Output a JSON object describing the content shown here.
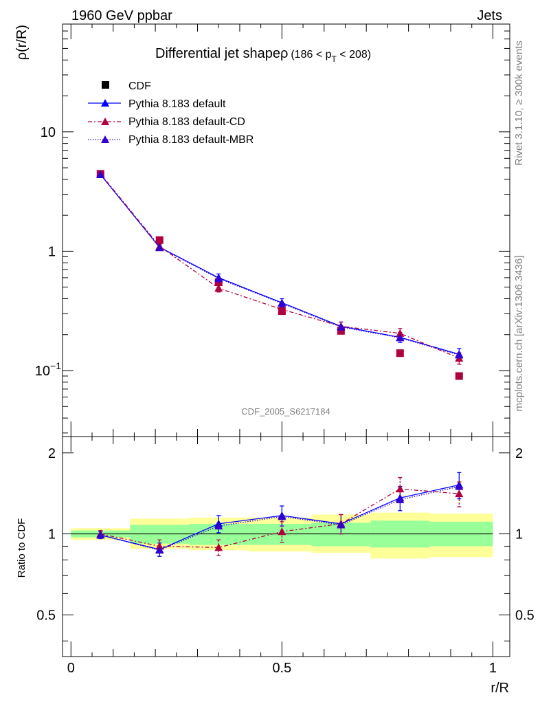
{
  "header": {
    "left": "1960 GeV ppbar",
    "right": "Jets"
  },
  "side_labels": {
    "rivet": "Rivet 3.1.10, ≥ 300k events",
    "mcplots": "mcplots.cern.ch [arXiv:1306.3436]"
  },
  "watermark": "CDF_2005_S6217184",
  "colors": {
    "cdf": "#000000",
    "default": "#0000ff",
    "cd": "#b00040",
    "mbr": "#3300cc",
    "band_inner": "#99ff99",
    "band_outer": "#ffff99"
  },
  "chart_data": [
    {
      "type": "scatter",
      "title": "Differential jet shapeρ",
      "title_suffix": "(186 < p",
      "title_sub": "T",
      "title_end": " < 208)",
      "xlabel": "r/R",
      "ylabel": "ρ(r/R)",
      "yscale": "log",
      "xlim": [
        -0.02,
        1.04
      ],
      "ylim": [
        0.028,
        80
      ],
      "yticks": [
        {
          "value": 0.1,
          "label": "10",
          "exp": "−1"
        },
        {
          "value": 1,
          "label": "1"
        },
        {
          "value": 10,
          "label": "10"
        }
      ],
      "legend": [
        "CDF",
        "Pythia 8.183 default",
        "Pythia 8.183 default-CD",
        "Pythia 8.183 default-MBR"
      ],
      "series": [
        {
          "name": "CDF",
          "style": "square",
          "x": [
            0.07,
            0.21,
            0.35,
            0.5,
            0.64,
            0.78,
            0.92
          ],
          "y": [
            4.45,
            1.24,
            0.55,
            0.315,
            0.215,
            0.14,
            0.09
          ]
        },
        {
          "name": "Pythia 8.183 default",
          "style": "solid",
          "x": [
            0.07,
            0.21,
            0.35,
            0.5,
            0.64,
            0.78,
            0.92
          ],
          "y": [
            4.38,
            1.08,
            0.6,
            0.37,
            0.235,
            0.19,
            0.137
          ],
          "err": [
            0.12,
            0.05,
            0.045,
            0.03,
            0.02,
            0.018,
            0.016
          ]
        },
        {
          "name": "Pythia 8.183 default-CD",
          "style": "dashdot",
          "x": [
            0.07,
            0.21,
            0.35,
            0.5,
            0.64,
            0.78,
            0.92
          ],
          "y": [
            4.45,
            1.1,
            0.49,
            0.325,
            0.235,
            0.205,
            0.127
          ],
          "err": [
            0.12,
            0.05,
            0.035,
            0.03,
            0.02,
            0.02,
            0.014
          ]
        },
        {
          "name": "Pythia 8.183 default-MBR",
          "style": "dotted",
          "x": [
            0.07,
            0.21,
            0.35,
            0.5,
            0.64,
            0.78,
            0.92
          ],
          "y": [
            4.4,
            1.07,
            0.59,
            0.365,
            0.232,
            0.188,
            0.135
          ]
        }
      ]
    },
    {
      "type": "scatter",
      "ylabel": "Ratio to CDF",
      "xlabel": "r/R",
      "xlim": [
        -0.02,
        1.04
      ],
      "ylim": [
        0.35,
        2.3
      ],
      "yticks": [
        {
          "value": 0.5,
          "label": "0.5"
        },
        {
          "value": 1,
          "label": "1"
        },
        {
          "value": 2,
          "label": "2"
        }
      ],
      "xticks": [
        {
          "value": 0,
          "label": "0"
        },
        {
          "value": 0.5,
          "label": "0.5"
        },
        {
          "value": 1,
          "label": "1"
        }
      ],
      "bands": [
        {
          "x0": 0.0,
          "x1": 0.14,
          "inner": [
            0.97,
            1.03
          ],
          "outer": [
            0.95,
            1.05
          ]
        },
        {
          "x0": 0.14,
          "x1": 0.28,
          "inner": [
            0.92,
            1.08
          ],
          "outer": [
            0.88,
            1.14
          ]
        },
        {
          "x0": 0.28,
          "x1": 0.42,
          "inner": [
            0.91,
            1.09
          ],
          "outer": [
            0.87,
            1.15
          ]
        },
        {
          "x0": 0.42,
          "x1": 0.57,
          "inner": [
            0.91,
            1.09
          ],
          "outer": [
            0.86,
            1.15
          ]
        },
        {
          "x0": 0.57,
          "x1": 0.71,
          "inner": [
            0.9,
            1.1
          ],
          "outer": [
            0.85,
            1.18
          ]
        },
        {
          "x0": 0.71,
          "x1": 0.85,
          "inner": [
            0.89,
            1.12
          ],
          "outer": [
            0.81,
            1.2
          ]
        },
        {
          "x0": 0.85,
          "x1": 1.0,
          "inner": [
            0.9,
            1.11
          ],
          "outer": [
            0.82,
            1.19
          ]
        }
      ],
      "series": [
        {
          "name": "Pythia 8.183 default",
          "style": "solid",
          "x": [
            0.07,
            0.21,
            0.35,
            0.5,
            0.64,
            0.78,
            0.92
          ],
          "y": [
            0.99,
            0.875,
            1.09,
            1.17,
            1.09,
            1.36,
            1.52
          ],
          "err": [
            0.03,
            0.05,
            0.08,
            0.1,
            0.09,
            0.14,
            0.17
          ]
        },
        {
          "name": "Pythia 8.183 default-CD",
          "style": "dashdot",
          "x": [
            0.07,
            0.21,
            0.35,
            0.5,
            0.64,
            0.78,
            0.92
          ],
          "y": [
            1.0,
            0.9,
            0.89,
            1.02,
            1.09,
            1.47,
            1.41
          ],
          "err": [
            0.03,
            0.05,
            0.06,
            0.09,
            0.09,
            0.15,
            0.15
          ]
        },
        {
          "name": "Pythia 8.183 default-MBR",
          "style": "dotted",
          "x": [
            0.07,
            0.21,
            0.35,
            0.5,
            0.64,
            0.78,
            0.92
          ],
          "y": [
            0.99,
            0.87,
            1.07,
            1.16,
            1.08,
            1.34,
            1.5
          ]
        }
      ]
    }
  ]
}
